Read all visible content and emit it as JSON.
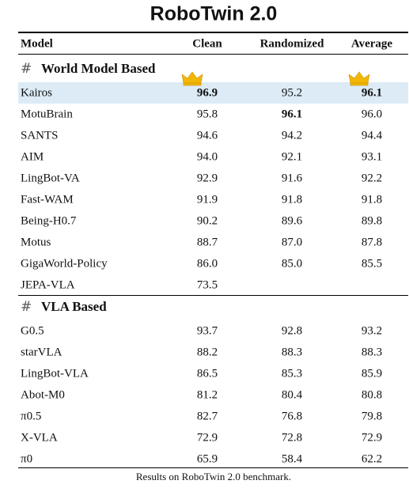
{
  "title": "RoboTwin 2.0",
  "table": {
    "columns": [
      "Model",
      "Clean",
      "Randomized",
      "Average"
    ],
    "sections": [
      {
        "label": "World Model Based",
        "rows": [
          [
            "Kairos",
            "96.9",
            "95.2",
            "96.1"
          ],
          [
            "MotuBrain",
            "95.8",
            "96.1",
            "96.0"
          ],
          [
            "SANTS",
            "94.6",
            "94.2",
            "94.4"
          ],
          [
            "AIM",
            "94.0",
            "92.1",
            "93.1"
          ],
          [
            "LingBot-VA",
            "92.9",
            "91.6",
            "92.2"
          ],
          [
            "Fast-WAM",
            "91.9",
            "91.8",
            "91.8"
          ],
          [
            "Being-H0.7",
            "90.2",
            "89.6",
            "89.8"
          ],
          [
            "Motus",
            "88.7",
            "87.0",
            "87.8"
          ],
          [
            "GigaWorld-Policy",
            "86.0",
            "85.0",
            "85.5"
          ],
          [
            "JEPA-VLA",
            "73.5",
            null,
            null
          ]
        ]
      },
      {
        "label": "VLA Based",
        "rows": [
          [
            "G0.5",
            "93.7",
            "92.8",
            "93.2"
          ],
          [
            "starVLA",
            "88.2",
            "88.3",
            "88.3"
          ],
          [
            "LingBot-VLA",
            "86.5",
            "85.3",
            "85.9"
          ],
          [
            "Abot-M0",
            "81.2",
            "80.4",
            "80.8"
          ],
          [
            "π0.5",
            "82.7",
            "76.8",
            "79.8"
          ],
          [
            "X-VLA",
            "72.9",
            "72.8",
            "72.9"
          ],
          [
            "π0",
            "65.9",
            "58.4",
            "62.2"
          ]
        ]
      }
    ]
  },
  "caption": "Results on RoboTwin 2.0 benchmark."
}
